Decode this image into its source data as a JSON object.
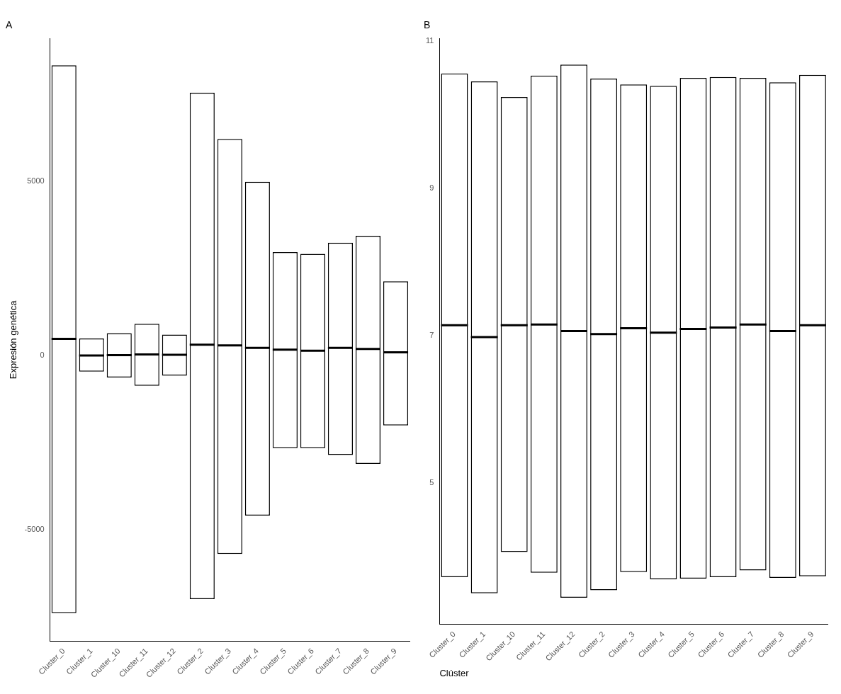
{
  "chart_data": [
    {
      "type": "box",
      "title": "A",
      "ylabel": "Expresión genética",
      "categories": [
        "Cluster_0",
        "Cluster_1",
        "Cluster_10",
        "Cluster_11",
        "Cluster_12",
        "Cluster_2",
        "Cluster_3",
        "Cluster_4",
        "Cluster_5",
        "Cluster_6",
        "Cluster_7",
        "Cluster_8",
        "Cluster_9"
      ],
      "ylim": [
        -8200,
        9100
      ],
      "yticks": [
        -5000,
        0,
        5000
      ],
      "grid": false,
      "legend": false,
      "boxes": [
        {
          "low": -7400,
          "q1": -7400,
          "median": 480,
          "q3": 8340,
          "high": 8340
        },
        {
          "low": -460,
          "q1": -460,
          "median": 0,
          "q3": 490,
          "high": 490
        },
        {
          "low": -630,
          "q1": -630,
          "median": 10,
          "q3": 640,
          "high": 640
        },
        {
          "low": -870,
          "q1": -870,
          "median": 30,
          "q3": 910,
          "high": 910
        },
        {
          "low": -580,
          "q1": -580,
          "median": 20,
          "q3": 600,
          "high": 600
        },
        {
          "low": -7000,
          "q1": -7000,
          "median": 310,
          "q3": 7550,
          "high": 7550
        },
        {
          "low": -5700,
          "q1": -5700,
          "median": 290,
          "q3": 6220,
          "high": 6220
        },
        {
          "low": -4600,
          "q1": -4600,
          "median": 220,
          "q3": 4990,
          "high": 4990
        },
        {
          "low": -2660,
          "q1": -2660,
          "median": 170,
          "q3": 2970,
          "high": 2970
        },
        {
          "low": -2660,
          "q1": -2660,
          "median": 140,
          "q3": 2920,
          "high": 2920
        },
        {
          "low": -2860,
          "q1": -2860,
          "median": 220,
          "q3": 3240,
          "high": 3240
        },
        {
          "low": -3110,
          "q1": -3110,
          "median": 190,
          "q3": 3440,
          "high": 3440
        },
        {
          "low": -2010,
          "q1": -2010,
          "median": 90,
          "q3": 2130,
          "high": 2130
        }
      ]
    },
    {
      "type": "box",
      "title": "B",
      "xlabel": "Clúster",
      "categories": [
        "Cluster_0",
        "Cluster_1",
        "Cluster_10",
        "Cluster_11",
        "Cluster_12",
        "Cluster_2",
        "Cluster_3",
        "Cluster_4",
        "Cluster_5",
        "Cluster_6",
        "Cluster_7",
        "Cluster_8",
        "Cluster_9"
      ],
      "ylim": [
        3.08,
        11.03
      ],
      "yticks": [
        5,
        7,
        9,
        11
      ],
      "grid": false,
      "legend": false,
      "boxes": [
        {
          "low": 3.72,
          "q1": 3.72,
          "median": 7.14,
          "q3": 10.56,
          "high": 10.56
        },
        {
          "low": 3.5,
          "q1": 3.5,
          "median": 6.98,
          "q3": 10.45,
          "high": 10.45
        },
        {
          "low": 4.06,
          "q1": 4.06,
          "median": 7.14,
          "q3": 10.24,
          "high": 10.24
        },
        {
          "low": 3.78,
          "q1": 3.78,
          "median": 7.15,
          "q3": 10.53,
          "high": 10.53
        },
        {
          "low": 3.44,
          "q1": 3.44,
          "median": 7.06,
          "q3": 10.68,
          "high": 10.68
        },
        {
          "low": 3.54,
          "q1": 3.54,
          "median": 7.02,
          "q3": 10.49,
          "high": 10.49
        },
        {
          "low": 3.79,
          "q1": 3.79,
          "median": 7.1,
          "q3": 10.41,
          "high": 10.41
        },
        {
          "low": 3.69,
          "q1": 3.69,
          "median": 7.04,
          "q3": 10.39,
          "high": 10.39
        },
        {
          "low": 3.7,
          "q1": 3.7,
          "median": 7.09,
          "q3": 10.5,
          "high": 10.5
        },
        {
          "low": 3.72,
          "q1": 3.72,
          "median": 7.11,
          "q3": 10.51,
          "high": 10.51
        },
        {
          "low": 3.81,
          "q1": 3.81,
          "median": 7.15,
          "q3": 10.5,
          "high": 10.5
        },
        {
          "low": 3.71,
          "q1": 3.71,
          "median": 7.06,
          "q3": 10.44,
          "high": 10.44
        },
        {
          "low": 3.73,
          "q1": 3.73,
          "median": 7.14,
          "q3": 10.54,
          "high": 10.54
        }
      ]
    }
  ]
}
